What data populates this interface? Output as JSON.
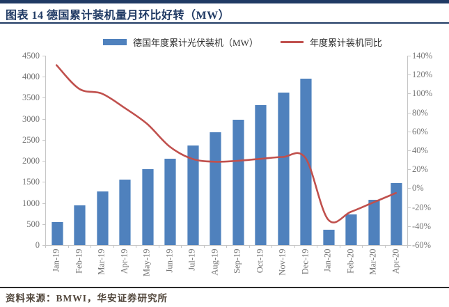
{
  "header": {
    "title": "图表 14 德国累计装机量月环比好转（MW）"
  },
  "footer": {
    "source": "资料来源：BMWI，华安证券研究所"
  },
  "colors": {
    "accent_navy": "#203a64",
    "bar_blue": "#4f81bd",
    "line_red": "#c0504d",
    "axis_gray": "#c6c6c6",
    "axis_text": "#757575"
  },
  "chart_data": {
    "type": "bar",
    "subtype": "bar+line combo, dual axis",
    "title": "",
    "categories": [
      "Jan-19",
      "Feb-19",
      "Mar-19",
      "Apr-19",
      "May-19",
      "Jun-19",
      "Jul-19",
      "Aug-19",
      "Sep-19",
      "Oct-19",
      "Nov-19",
      "Dec-19",
      "Jan-20",
      "Feb-20",
      "Mar-20",
      "Apr-20"
    ],
    "series": [
      {
        "name": "德国年度累计光伏装机（MW）",
        "type": "bar",
        "axis": "left",
        "color": "#4f81bd",
        "values": [
          550,
          950,
          1270,
          1550,
          1800,
          2050,
          2360,
          2680,
          2980,
          3330,
          3620,
          3950,
          370,
          720,
          1080,
          1470
        ]
      },
      {
        "name": "年度累计装机同比",
        "type": "line",
        "axis": "right",
        "unit": "%",
        "color": "#c0504d",
        "values": [
          130,
          105,
          100,
          85,
          68,
          44,
          31,
          28,
          29,
          31,
          33,
          32,
          -33,
          -25,
          -15,
          -5
        ]
      }
    ],
    "left_axis": {
      "min": 0,
      "max": 4500,
      "step": 500,
      "tick_labels": [
        "4500",
        "4000",
        "3500",
        "3000",
        "2500",
        "2000",
        "1500",
        "1000",
        "500",
        "0"
      ]
    },
    "right_axis": {
      "min": -60,
      "max": 140,
      "step": 20,
      "tick_labels": [
        "140%",
        "120%",
        "100%",
        "80%",
        "60%",
        "40%",
        "20%",
        "0%",
        "-20%",
        "-40%",
        "-60%"
      ]
    },
    "legend_position": "top",
    "grid": false
  }
}
